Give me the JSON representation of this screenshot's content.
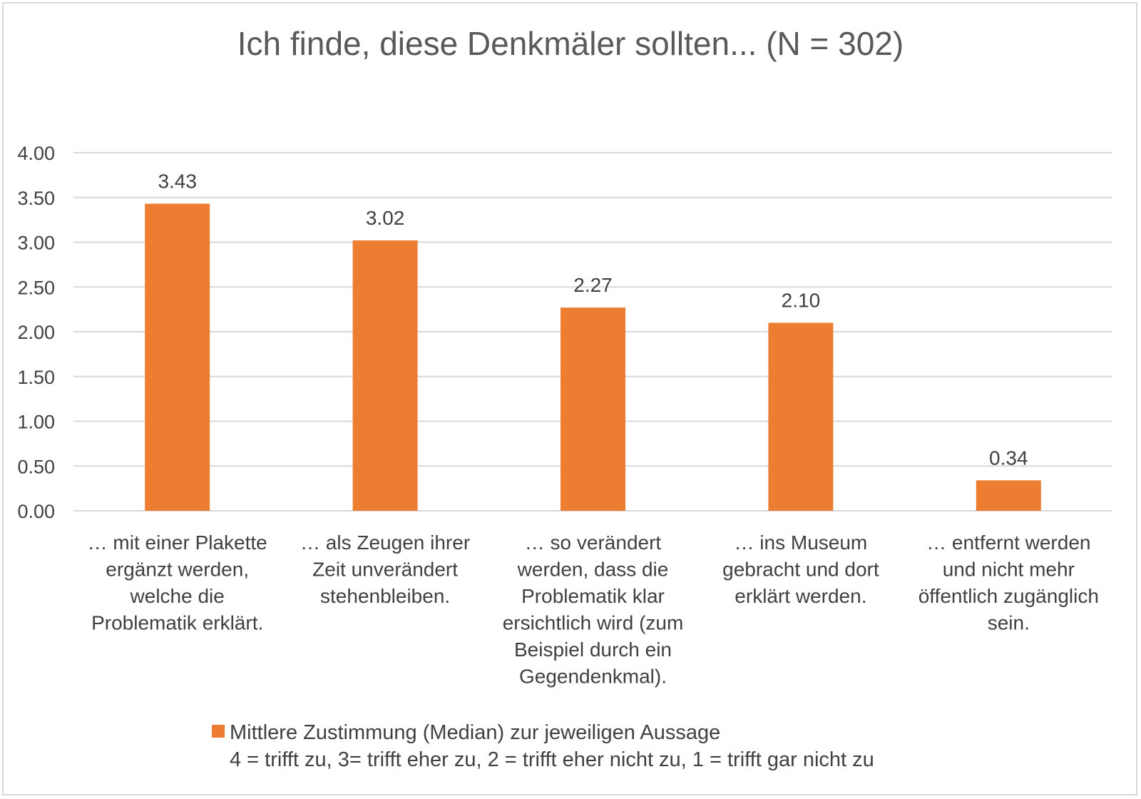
{
  "chart_data": {
    "type": "bar",
    "title": "Ich finde, diese Denkmäler sollten... (N = 302)",
    "categories": [
      [
        "… mit einer Plakette",
        "ergänzt werden,",
        "welche die",
        "Problematik erklärt."
      ],
      [
        "… als Zeugen ihrer",
        "Zeit unverändert",
        "stehenbleiben."
      ],
      [
        "… so verändert",
        "werden, dass die",
        "Problematik klar",
        "ersichtlich wird (zum",
        "Beispiel durch ein",
        "Gegendenkmal)."
      ],
      [
        "… ins Museum",
        "gebracht und dort",
        "erklärt werden."
      ],
      [
        "… entfernt werden",
        "und nicht mehr",
        "öffentlich zugänglich",
        "sein."
      ]
    ],
    "series": [
      {
        "name": "Mittlere Zustimmung (Median) zur jeweiligen Aussage",
        "values": [
          3.43,
          3.02,
          2.27,
          2.1,
          0.34
        ],
        "labels": [
          "3.43",
          "3.02",
          "2.27",
          "2.10",
          "0.34"
        ],
        "color": "#ed7d31"
      }
    ],
    "yticks": [
      "0.00",
      "0.50",
      "1.00",
      "1.50",
      "2.00",
      "2.50",
      "3.00",
      "3.50",
      "4.00"
    ],
    "ylim": [
      0,
      4
    ],
    "grid": true,
    "legend": {
      "position": "bottom",
      "line1": "Mittlere Zustimmung (Median) zur jeweiligen Aussage",
      "line2": "4 = trifft zu, 3= trifft eher zu, 2 = trifft eher nicht zu, 1 = trifft gar nicht zu"
    },
    "xlabel": "",
    "ylabel": ""
  },
  "colors": {
    "bar": "#ed7d31",
    "grid": "#d9d9d9",
    "text": "#404040",
    "title": "#595959"
  }
}
